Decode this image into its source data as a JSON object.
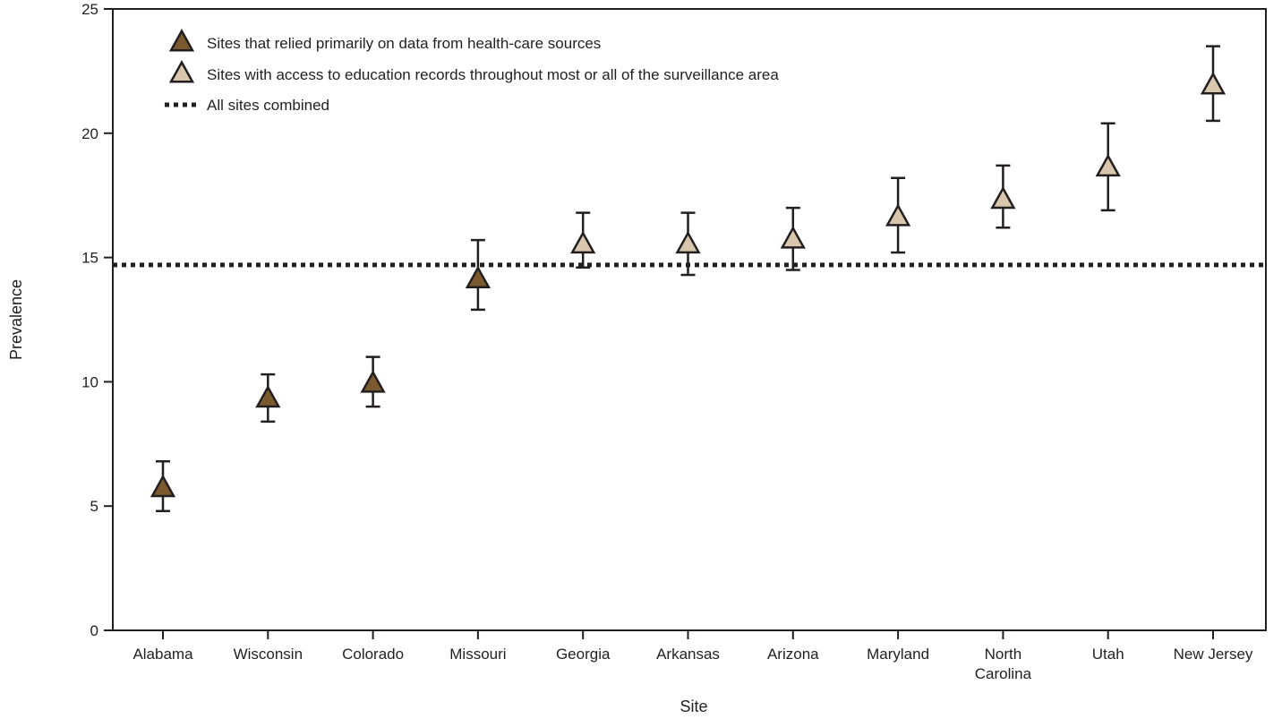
{
  "chart_data": {
    "type": "scatter",
    "xlabel": "Site",
    "ylabel": "Prevalence",
    "ylim": [
      0,
      25
    ],
    "yticks": [
      0,
      5,
      10,
      15,
      20,
      25
    ],
    "grid": false,
    "legend_position": "top-left",
    "categories": [
      [
        "Alabama"
      ],
      [
        "Wisconsin"
      ],
      [
        "Colorado"
      ],
      [
        "Missouri"
      ],
      [
        "Georgia"
      ],
      [
        "Arkansas"
      ],
      [
        "Arizona"
      ],
      [
        "Maryland"
      ],
      [
        "North",
        "Carolina"
      ],
      [
        "Utah"
      ],
      [
        "New Jersey"
      ]
    ],
    "series": [
      {
        "name": "Sites that relied primarily on data from health-care sources",
        "color": "#7a5a2e",
        "points": [
          {
            "site": 0,
            "value": 5.7,
            "ci": [
              4.8,
              6.8
            ]
          },
          {
            "site": 1,
            "value": 9.3,
            "ci": [
              8.4,
              10.3
            ]
          },
          {
            "site": 2,
            "value": 9.9,
            "ci": [
              9.0,
              11.0
            ]
          },
          {
            "site": 3,
            "value": 14.1,
            "ci": [
              12.9,
              15.7
            ]
          }
        ]
      },
      {
        "name": "Sites with access to education records throughout most or all of the surveillance area",
        "color": "#d8c6ad",
        "points": [
          {
            "site": 4,
            "value": 15.5,
            "ci": [
              14.6,
              16.8
            ]
          },
          {
            "site": 5,
            "value": 15.5,
            "ci": [
              14.3,
              16.8
            ]
          },
          {
            "site": 6,
            "value": 15.7,
            "ci": [
              14.5,
              17.0
            ]
          },
          {
            "site": 7,
            "value": 16.6,
            "ci": [
              15.2,
              18.2
            ]
          },
          {
            "site": 8,
            "value": 17.3,
            "ci": [
              16.2,
              18.7
            ]
          },
          {
            "site": 9,
            "value": 18.6,
            "ci": [
              16.9,
              20.4
            ]
          },
          {
            "site": 10,
            "value": 21.9,
            "ci": [
              20.5,
              23.5
            ]
          }
        ]
      }
    ],
    "reference_line": {
      "name": "All sites combined",
      "value": 14.7,
      "style": "dotted"
    }
  }
}
